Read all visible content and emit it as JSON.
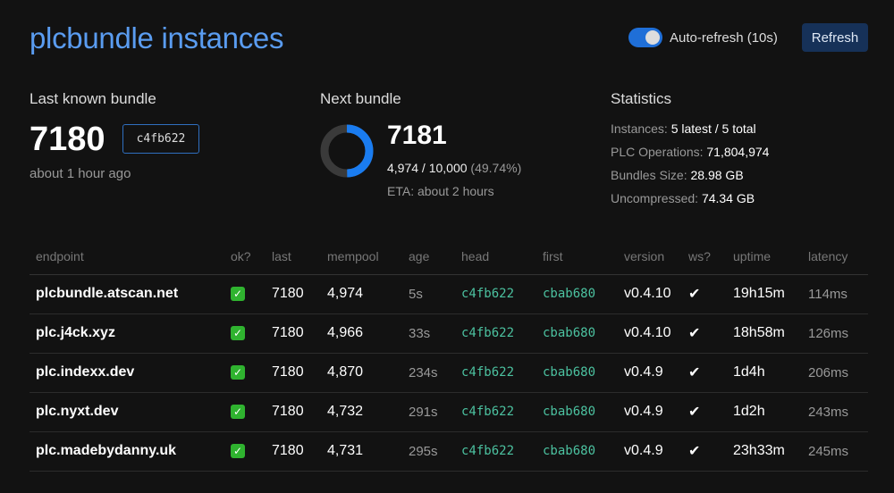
{
  "header": {
    "title": "plcbundle instances",
    "auto_refresh_label": "Auto-refresh (10s)",
    "auto_refresh_on": true,
    "refresh_label": "Refresh"
  },
  "last_bundle": {
    "label": "Last known bundle",
    "number": "7180",
    "hash": "c4fb622",
    "ago": "about 1 hour ago"
  },
  "next_bundle": {
    "label": "Next bundle",
    "number": "7181",
    "progress": "4,974 / 10,000",
    "percent_text": "(49.74%)",
    "percent": 49.74,
    "eta": "ETA: about 2 hours"
  },
  "statistics": {
    "label": "Statistics",
    "items": [
      {
        "key": "Instances:",
        "value": "5 latest / 5 total"
      },
      {
        "key": "PLC Operations:",
        "value": "71,804,974"
      },
      {
        "key": "Bundles Size:",
        "value": "28.98 GB"
      },
      {
        "key": "Uncompressed:",
        "value": "74.34 GB"
      }
    ]
  },
  "table": {
    "columns": [
      "endpoint",
      "ok?",
      "last",
      "mempool",
      "age",
      "head",
      "first",
      "version",
      "ws?",
      "uptime",
      "latency"
    ],
    "rows": [
      [
        "plcbundle.atscan.net",
        "✓",
        "7180",
        "4,974",
        "5s",
        "c4fb622",
        "cbab680",
        "v0.4.10",
        "✔",
        "19h15m",
        "114ms"
      ],
      [
        "plc.j4ck.xyz",
        "✓",
        "7180",
        "4,966",
        "33s",
        "c4fb622",
        "cbab680",
        "v0.4.10",
        "✔",
        "18h58m",
        "126ms"
      ],
      [
        "plc.indexx.dev",
        "✓",
        "7180",
        "4,870",
        "234s",
        "c4fb622",
        "cbab680",
        "v0.4.9",
        "✔",
        "1d4h",
        "206ms"
      ],
      [
        "plc.nyxt.dev",
        "✓",
        "7180",
        "4,732",
        "291s",
        "c4fb622",
        "cbab680",
        "v0.4.9",
        "✔",
        "1d2h",
        "243ms"
      ],
      [
        "plc.madebydanny.uk",
        "✓",
        "7180",
        "4,731",
        "295s",
        "c4fb622",
        "cbab680",
        "v0.4.9",
        "✔",
        "23h33m",
        "245ms"
      ]
    ]
  },
  "colors": {
    "accent": "#5a9cf0",
    "progress": "#1a7cf0",
    "hash": "#4cc2a0",
    "ok": "#2fb32f"
  }
}
